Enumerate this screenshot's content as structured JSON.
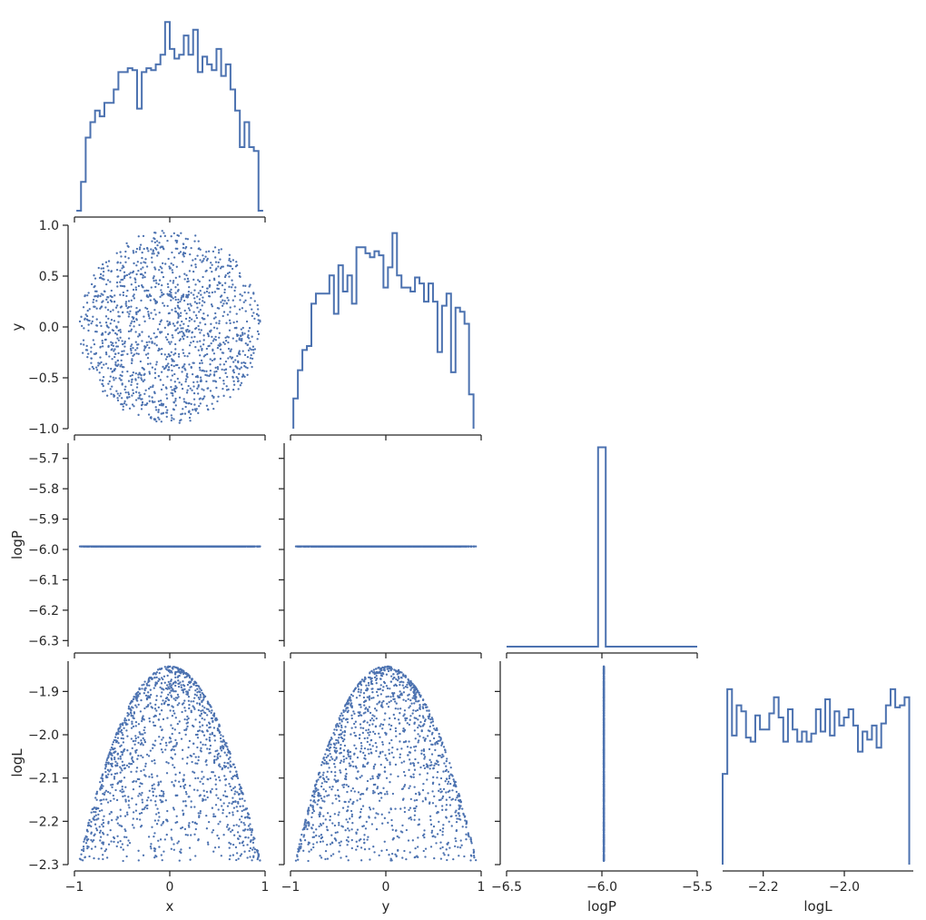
{
  "chart_data": {
    "type": "scatter",
    "layout": "corner-pairplot",
    "variables": [
      "x",
      "y",
      "logP",
      "logL"
    ],
    "axis_labels": {
      "x": "x",
      "y": "y",
      "logP": "logP",
      "logL": "logL"
    },
    "ranges": {
      "x": [
        -1.0,
        1.0
      ],
      "y": [
        -1.0,
        1.0
      ],
      "logP": [
        -6.5,
        -5.5
      ],
      "logL": [
        -2.3,
        -1.83
      ]
    },
    "row_ranges": {
      "y": [
        -1.0,
        1.0
      ],
      "logP": [
        -6.32,
        -5.65
      ],
      "logL": [
        -2.3,
        -1.83
      ]
    },
    "ticks": {
      "x": [
        -1,
        0,
        1
      ],
      "y": [
        -1,
        0,
        1
      ],
      "logP": [
        -6.5,
        -6.0,
        -5.5
      ],
      "logL": [
        -2.2,
        -2.0
      ]
    },
    "tick_labels": {
      "x": [
        "−1",
        "0",
        "1"
      ],
      "y": [
        "−1",
        "0",
        "1"
      ],
      "logP": [
        "−6.5",
        "−6.0",
        "−5.5"
      ],
      "logL": [
        "−2.2",
        "−2.0"
      ]
    },
    "row_ticks": {
      "y": [
        -1.0,
        -0.5,
        0.0,
        0.5,
        1.0
      ],
      "logP": [
        -6.3,
        -6.2,
        -6.1,
        -6.0,
        -5.9,
        -5.8,
        -5.7
      ],
      "logL": [
        -2.3,
        -2.2,
        -2.1,
        -2.0,
        -1.9
      ]
    },
    "row_tick_labels": {
      "y": [
        "−1.0",
        "−0.5",
        "0.0",
        "0.5",
        "1.0"
      ],
      "logP": [
        "−6.3",
        "−6.2",
        "−6.1",
        "−6.0",
        "−5.9",
        "−5.8",
        "−5.7"
      ],
      "logL": [
        "−2.3",
        "−2.2",
        "−2.1",
        "−2.0",
        "−1.9"
      ]
    },
    "logP_constant": -5.99,
    "logL_max": -1.842,
    "histograms": {
      "x": {
        "range": [
          -0.98,
          0.98
        ],
        "bins": 40,
        "counts": [
          0.0,
          0.15,
          0.38,
          0.46,
          0.52,
          0.49,
          0.56,
          0.56,
          0.63,
          0.72,
          0.72,
          0.74,
          0.73,
          0.53,
          0.72,
          0.74,
          0.73,
          0.76,
          0.81,
          0.98,
          0.84,
          0.79,
          0.81,
          0.91,
          0.81,
          0.94,
          0.72,
          0.8,
          0.76,
          0.73,
          0.84,
          0.7,
          0.76,
          0.63,
          0.52,
          0.33,
          0.46,
          0.33,
          0.31,
          0.0
        ]
      },
      "y": {
        "range": [
          -0.97,
          0.92
        ],
        "bins": 40,
        "counts": [
          0.15,
          0.29,
          0.39,
          0.41,
          0.62,
          0.67,
          0.67,
          0.67,
          0.76,
          0.57,
          0.81,
          0.68,
          0.76,
          0.62,
          0.9,
          0.9,
          0.87,
          0.85,
          0.88,
          0.86,
          0.7,
          0.8,
          0.97,
          0.76,
          0.7,
          0.7,
          0.68,
          0.75,
          0.72,
          0.63,
          0.72,
          0.63,
          0.38,
          0.61,
          0.67,
          0.28,
          0.6,
          0.58,
          0.52,
          0.17
        ]
      },
      "logP": {
        "range": [
          -6.5,
          -5.5
        ],
        "bins": [
          -6.02,
          -5.98
        ],
        "counts": [
          1.0
        ]
      },
      "logL": {
        "range": [
          -2.3,
          -1.84
        ],
        "bins": 40,
        "counts": [
          0.45,
          0.87,
          0.64,
          0.79,
          0.76,
          0.63,
          0.61,
          0.74,
          0.67,
          0.67,
          0.75,
          0.83,
          0.73,
          0.61,
          0.77,
          0.67,
          0.61,
          0.66,
          0.61,
          0.65,
          0.77,
          0.66,
          0.82,
          0.64,
          0.76,
          0.69,
          0.73,
          0.77,
          0.69,
          0.56,
          0.66,
          0.62,
          0.69,
          0.58,
          0.7,
          0.79,
          0.87,
          0.78,
          0.79,
          0.83
        ]
      }
    },
    "n_points": 1400,
    "series": [
      {
        "values": "uniform samples in the unit disk; logL = -1.842 - 0.45*(x^2+y^2)"
      }
    ]
  },
  "colors": {
    "series": "#4c72b0",
    "axis": "#262626",
    "background": "#ffffff"
  }
}
